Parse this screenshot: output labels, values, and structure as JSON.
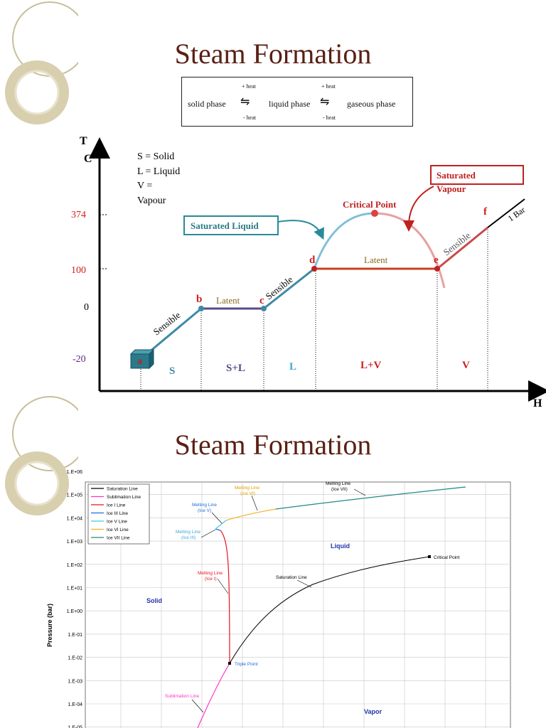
{
  "slide1": {
    "title": "Steam Formation",
    "phase_box": {
      "solid": "solid phase",
      "liquid": "liquid phase",
      "gaseous": "gaseous phase",
      "plus_heat": "+ heat",
      "minus_heat": "- heat"
    },
    "diagram": {
      "y_axis_top": "T",
      "y_axis_unit": "C",
      "x_axis": "H",
      "legend_lines": [
        "S = Solid",
        "L = Liquid",
        "V =",
        "Vapour"
      ],
      "temps": [
        "374",
        "100",
        "0",
        "-20"
      ],
      "points": [
        "a",
        "b",
        "c",
        "d",
        "e",
        "f"
      ],
      "segment_labels": {
        "sensible": "Sensible",
        "latent": "Latent"
      },
      "regions": [
        "S",
        "S+L",
        "L",
        "L+V",
        "V"
      ],
      "critical_point": "Critical Point",
      "saturated_liquid": "Saturated Liquid",
      "saturated_vapour_1": "Saturated",
      "saturated_vapour_2": "Vapour",
      "one_bar": "1 Bar"
    }
  },
  "slide2": {
    "title": "Steam Formation",
    "chart_data": {
      "type": "line",
      "ylabel": "Pressure (bar)",
      "y_ticks": [
        "1.E+06",
        "1.E+05",
        "1.E+04",
        "1.E+03",
        "1.E+02",
        "1.E+01",
        "1.E+00",
        "1.E-01",
        "1.E-02",
        "1.E-03",
        "1.E-04",
        "1.E-05"
      ],
      "yscale": "log",
      "legend": [
        "Saturation Line",
        "Sublimation Line",
        "Ice I Line",
        "Ice III Line",
        "Ice V Line",
        "Ice VI Line",
        "Ice VII Line"
      ],
      "legend_colors": [
        "#000000",
        "#ff33cc",
        "#e8141e",
        "#1e6ed8",
        "#40c8f0",
        "#f0b020",
        "#208888"
      ],
      "regions": {
        "solid": "Solid",
        "liquid": "Liquid",
        "vapor": "Vapor"
      },
      "annotations": {
        "melting_ice7": [
          "Melting Line",
          "(Ice VII)"
        ],
        "melting_ice6": [
          "Melting Line",
          "(Ice VI)"
        ],
        "melting_ice5": [
          "Melting Line",
          "(Ice V)"
        ],
        "melting_ice3": [
          "Melting Line",
          "(Ice III)"
        ],
        "melting_ice1": [
          "Melting Line",
          "(Ice I)"
        ],
        "saturation": "Saturation Line",
        "critical": "Critical Point",
        "triple": "Triple Point",
        "sublimation": "Sublimation Line"
      }
    }
  }
}
